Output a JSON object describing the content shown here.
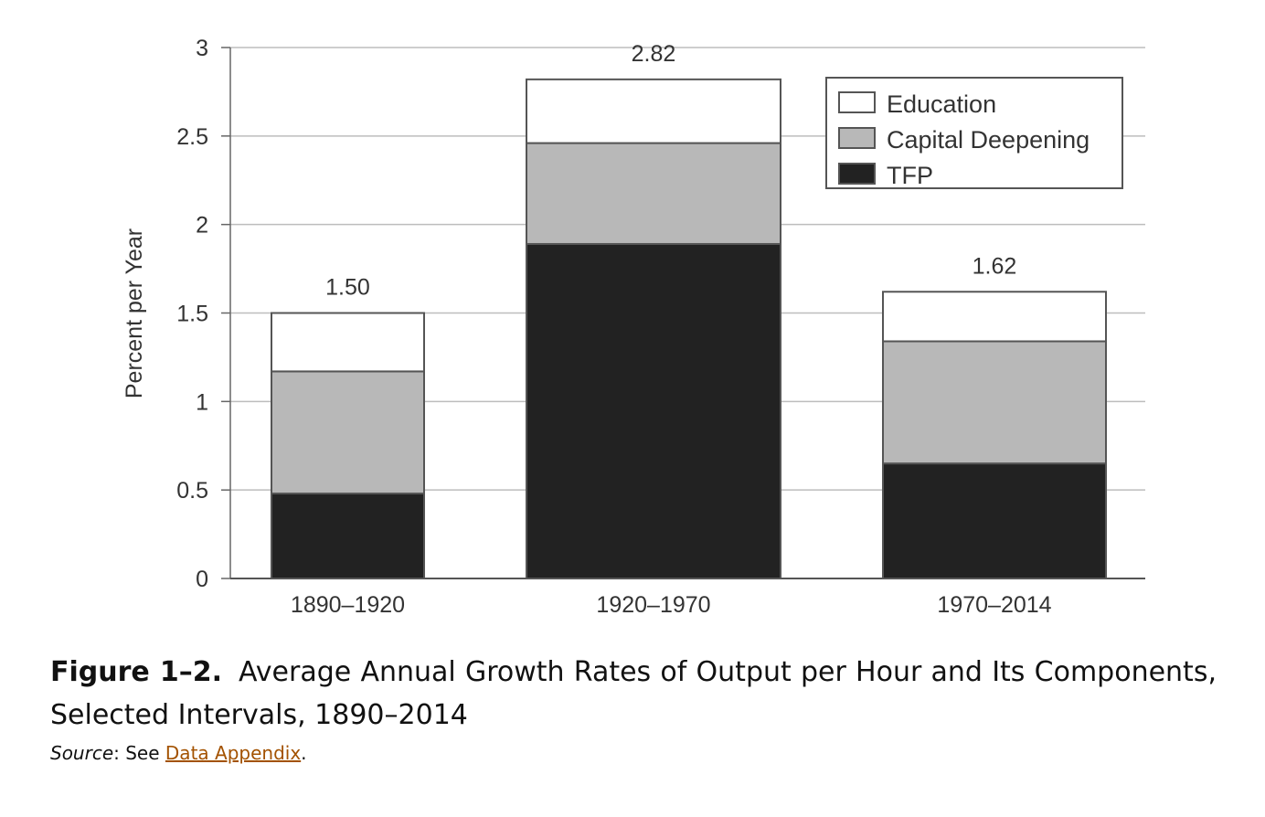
{
  "chart_data": {
    "type": "bar",
    "stacked": true,
    "categories": [
      "1890–1920",
      "1920–1970",
      "1970–2014"
    ],
    "series": [
      {
        "name": "TFP",
        "values": [
          0.48,
          1.89,
          0.65
        ],
        "color": "#222222"
      },
      {
        "name": "Capital Deepening",
        "values": [
          0.69,
          0.57,
          0.69
        ],
        "color": "#b8b8b8"
      },
      {
        "name": "Education",
        "values": [
          0.33,
          0.36,
          0.28
        ],
        "color": "#ffffff"
      }
    ],
    "totals": [
      1.5,
      2.82,
      1.62
    ],
    "total_labels": [
      "1.50",
      "2.82",
      "1.62"
    ],
    "ylabel": "Percent per Year",
    "ylim": [
      0,
      3
    ],
    "yticks": [
      0,
      0.5,
      1,
      1.5,
      2,
      2.5,
      3
    ],
    "ytick_labels": [
      "0",
      "0.5",
      "1",
      "1.5",
      "2",
      "2.5",
      "3"
    ],
    "grid": true,
    "legend": {
      "placement": "top-right",
      "entries": [
        "Education",
        "Capital Deepening",
        "TFP"
      ]
    }
  },
  "caption": {
    "label": "Figure 1–2.",
    "text": "Average Annual Growth Rates of Output per Hour and Its Components, Selected Intervals, 1890–2014"
  },
  "source": {
    "label": "Source",
    "prefix": ": See ",
    "link_text": "Data Appendix",
    "suffix": "."
  }
}
